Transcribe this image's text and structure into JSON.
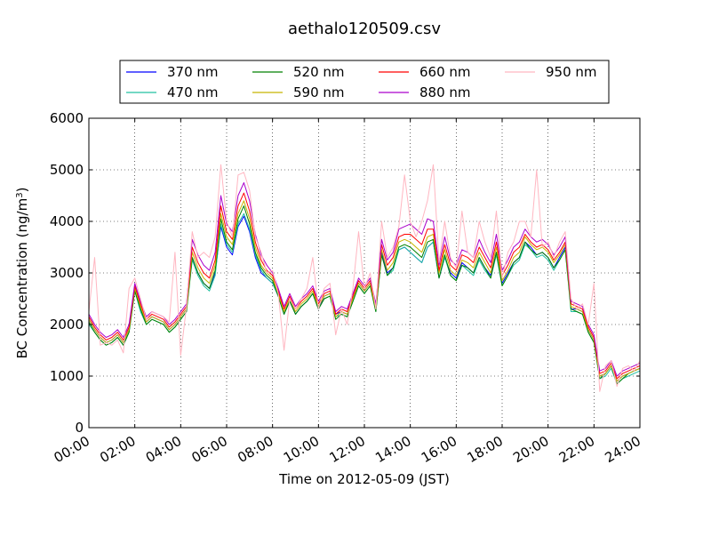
{
  "chart_data": {
    "type": "line",
    "title": "aethalo120509.csv",
    "xlabel": "Time on 2012-05-09 (JST)",
    "ylabel": "BC Concentration (ng/m",
    "ylabel_sup": "3",
    "ylabel_end": ")",
    "x_unit": "hour",
    "xlim": [
      0,
      24
    ],
    "ylim": [
      0,
      6000
    ],
    "grid": true,
    "legend_position": "top-center",
    "x_ticks": [
      0,
      2,
      4,
      6,
      8,
      10,
      12,
      14,
      16,
      18,
      20,
      22,
      24
    ],
    "x_tick_labels": [
      "00:00",
      "02:00",
      "04:00",
      "06:00",
      "08:00",
      "10:00",
      "12:00",
      "14:00",
      "16:00",
      "18:00",
      "20:00",
      "22:00",
      "24:00"
    ],
    "y_ticks": [
      0,
      1000,
      2000,
      3000,
      4000,
      5000,
      6000
    ],
    "y_tick_labels": [
      "0",
      "1000",
      "2000",
      "3000",
      "4000",
      "5000",
      "6000"
    ],
    "x": [
      0.0,
      0.25,
      0.5,
      0.75,
      1.0,
      1.25,
      1.5,
      1.75,
      2.0,
      2.25,
      2.5,
      2.75,
      3.0,
      3.25,
      3.5,
      3.75,
      4.0,
      4.25,
      4.5,
      4.75,
      5.0,
      5.25,
      5.5,
      5.75,
      6.0,
      6.25,
      6.5,
      6.75,
      7.0,
      7.25,
      7.5,
      7.75,
      8.0,
      8.25,
      8.5,
      8.75,
      9.0,
      9.25,
      9.5,
      9.75,
      10.0,
      10.25,
      10.5,
      10.75,
      11.0,
      11.25,
      11.5,
      11.75,
      12.0,
      12.25,
      12.5,
      12.75,
      13.0,
      13.25,
      13.5,
      13.75,
      14.0,
      14.25,
      14.5,
      14.75,
      15.0,
      15.25,
      15.5,
      15.75,
      16.0,
      16.25,
      16.5,
      16.75,
      17.0,
      17.25,
      17.5,
      17.75,
      18.0,
      18.25,
      18.5,
      18.75,
      19.0,
      19.25,
      19.5,
      19.75,
      20.0,
      20.25,
      20.5,
      20.75,
      21.0,
      21.25,
      21.5,
      21.75,
      22.0,
      22.25,
      22.5,
      22.75,
      23.0,
      23.25,
      23.5,
      23.75,
      24.0
    ],
    "series": [
      {
        "name": "370 nm",
        "color": "#0000ff",
        "values": [
          2100,
          1900,
          1750,
          1650,
          1700,
          1800,
          1650,
          1900,
          2700,
          2300,
          2050,
          2150,
          2100,
          2050,
          1900,
          2000,
          2150,
          2300,
          3300,
          3000,
          2800,
          2700,
          3000,
          3900,
          3500,
          3350,
          3900,
          4100,
          3800,
          3300,
          3000,
          2900,
          2800,
          2550,
          2200,
          2500,
          2200,
          2350,
          2450,
          2600,
          2300,
          2550,
          2600,
          2200,
          2250,
          2200,
          2500,
          2800,
          2650,
          2800,
          2300,
          3400,
          3000,
          3100,
          3450,
          3500,
          3400,
          3300,
          3200,
          3500,
          3600,
          2900,
          3300,
          3000,
          2900,
          3200,
          3100,
          3000,
          3300,
          3100,
          2950,
          3400,
          2800,
          3000,
          3200,
          3300,
          3600,
          3500,
          3350,
          3400,
          3300,
          3100,
          3300,
          3500,
          2300,
          2300,
          2250,
          1900,
          1700,
          1000,
          1050,
          1200,
          900,
          1000,
          1050,
          1100,
          1150
        ]
      },
      {
        "name": "470 nm",
        "color": "#20c0a0",
        "values": [
          2000,
          1850,
          1700,
          1600,
          1650,
          1750,
          1600,
          1850,
          2650,
          2250,
          2000,
          2100,
          2050,
          2000,
          1850,
          1950,
          2100,
          2250,
          3250,
          2950,
          2750,
          2650,
          2950,
          3950,
          3550,
          3400,
          3950,
          4150,
          3850,
          3350,
          3050,
          2900,
          2800,
          2550,
          2200,
          2450,
          2200,
          2350,
          2450,
          2600,
          2300,
          2500,
          2550,
          2150,
          2200,
          2150,
          2450,
          2750,
          2600,
          2750,
          2250,
          3350,
          2950,
          3050,
          3450,
          3500,
          3400,
          3300,
          3200,
          3500,
          3600,
          2900,
          3300,
          2950,
          2850,
          3150,
          3050,
          2950,
          3250,
          3050,
          2900,
          3350,
          2750,
          2950,
          3150,
          3250,
          3550,
          3450,
          3300,
          3350,
          3250,
          3050,
          3250,
          3450,
          2250,
          2250,
          2200,
          1850,
          1650,
          950,
          1000,
          1150,
          850,
          950,
          1000,
          1050,
          1100
        ]
      },
      {
        "name": "520 nm",
        "color": "#008000",
        "values": [
          2050,
          1850,
          1700,
          1600,
          1650,
          1750,
          1600,
          1850,
          2650,
          2300,
          2000,
          2100,
          2050,
          2000,
          1850,
          1950,
          2100,
          2250,
          3300,
          3000,
          2800,
          2700,
          3050,
          4050,
          3600,
          3450,
          4050,
          4300,
          3950,
          3400,
          3100,
          2950,
          2850,
          2550,
          2200,
          2450,
          2200,
          2350,
          2450,
          2600,
          2300,
          2500,
          2550,
          2100,
          2200,
          2150,
          2450,
          2750,
          2600,
          2750,
          2250,
          3350,
          2950,
          3100,
          3500,
          3550,
          3500,
          3400,
          3300,
          3600,
          3650,
          2900,
          3350,
          2950,
          2850,
          3150,
          3100,
          3000,
          3300,
          3100,
          2900,
          3400,
          2750,
          2950,
          3200,
          3300,
          3600,
          3450,
          3350,
          3400,
          3300,
          3100,
          3250,
          3450,
          2300,
          2250,
          2200,
          1850,
          1650,
          950,
          1050,
          1200,
          850,
          950,
          1050,
          1100,
          1150
        ]
      },
      {
        "name": "590 nm",
        "color": "#c8b400",
        "values": [
          2100,
          1900,
          1750,
          1650,
          1700,
          1800,
          1650,
          1900,
          2700,
          2350,
          2050,
          2150,
          2100,
          2050,
          1900,
          2000,
          2150,
          2300,
          3400,
          3100,
          2900,
          2800,
          3150,
          4150,
          3700,
          3550,
          4150,
          4400,
          4050,
          3500,
          3150,
          3000,
          2900,
          2600,
          2250,
          2500,
          2250,
          2400,
          2500,
          2650,
          2350,
          2550,
          2600,
          2150,
          2250,
          2200,
          2500,
          2800,
          2650,
          2800,
          2300,
          3450,
          3050,
          3200,
          3600,
          3650,
          3600,
          3500,
          3400,
          3700,
          3750,
          3000,
          3450,
          3050,
          2950,
          3250,
          3200,
          3100,
          3400,
          3200,
          3000,
          3500,
          2850,
          3050,
          3300,
          3400,
          3700,
          3550,
          3450,
          3500,
          3400,
          3200,
          3350,
          3550,
          2350,
          2300,
          2250,
          1900,
          1700,
          1000,
          1050,
          1200,
          900,
          1000,
          1050,
          1100,
          1150
        ]
      },
      {
        "name": "660 nm",
        "color": "#ff0000",
        "values": [
          2150,
          1950,
          1800,
          1700,
          1750,
          1850,
          1700,
          1950,
          2750,
          2400,
          2100,
          2200,
          2150,
          2100,
          1950,
          2050,
          2200,
          2350,
          3500,
          3200,
          3000,
          2900,
          3250,
          4300,
          3800,
          3650,
          4300,
          4550,
          4200,
          3600,
          3250,
          3050,
          2950,
          2650,
          2300,
          2550,
          2300,
          2450,
          2550,
          2700,
          2400,
          2600,
          2650,
          2200,
          2300,
          2250,
          2550,
          2850,
          2700,
          2850,
          2350,
          3550,
          3150,
          3300,
          3700,
          3750,
          3750,
          3650,
          3550,
          3850,
          3850,
          3050,
          3550,
          3150,
          3050,
          3350,
          3300,
          3200,
          3500,
          3300,
          3100,
          3600,
          2950,
          3150,
          3400,
          3500,
          3750,
          3600,
          3500,
          3550,
          3450,
          3250,
          3400,
          3600,
          2400,
          2350,
          2300,
          1950,
          1750,
          1050,
          1100,
          1250,
          950,
          1050,
          1100,
          1150,
          1200
        ]
      },
      {
        "name": "880 nm",
        "color": "#aa00cc",
        "values": [
          2200,
          2000,
          1850,
          1750,
          1800,
          1900,
          1750,
          2000,
          2800,
          2450,
          2150,
          2250,
          2200,
          2150,
          2000,
          2100,
          2250,
          2400,
          3650,
          3350,
          3150,
          3050,
          3400,
          4500,
          3950,
          3800,
          4500,
          4750,
          4400,
          3750,
          3350,
          3150,
          3000,
          2700,
          2350,
          2600,
          2350,
          2500,
          2600,
          2750,
          2450,
          2650,
          2700,
          2250,
          2350,
          2300,
          2600,
          2900,
          2750,
          2900,
          2400,
          3650,
          3250,
          3400,
          3850,
          3900,
          3950,
          3850,
          3750,
          4050,
          4000,
          3150,
          3700,
          3250,
          3150,
          3450,
          3400,
          3300,
          3650,
          3400,
          3200,
          3750,
          3050,
          3250,
          3500,
          3600,
          3850,
          3700,
          3600,
          3650,
          3550,
          3350,
          3500,
          3700,
          2450,
          2400,
          2350,
          2000,
          1800,
          1100,
          1150,
          1300,
          1000,
          1100,
          1150,
          1200,
          1250
        ]
      },
      {
        "name": "950 nm",
        "color": "#ffb6c1",
        "values": [
          2250,
          3300,
          1600,
          1650,
          1600,
          1700,
          1450,
          2700,
          2900,
          2500,
          2100,
          2250,
          2200,
          2150,
          2050,
          3400,
          1400,
          2350,
          3800,
          3300,
          3400,
          3300,
          3700,
          5100,
          4000,
          3700,
          4900,
          4950,
          4600,
          3700,
          3400,
          3000,
          3050,
          2600,
          1500,
          2500,
          2300,
          2500,
          2700,
          3300,
          2300,
          2700,
          2800,
          1800,
          2300,
          2000,
          2700,
          3800,
          2700,
          3000,
          2300,
          4000,
          3300,
          3500,
          3900,
          4900,
          4000,
          3700,
          4000,
          4400,
          5100,
          3200,
          4000,
          3300,
          3100,
          4200,
          3400,
          3300,
          4000,
          3600,
          3300,
          4200,
          2900,
          3400,
          3600,
          4000,
          4000,
          3700,
          5000,
          3500,
          3600,
          3300,
          3600,
          3800,
          2500,
          2300,
          2400,
          2000,
          2800,
          700,
          1200,
          1300,
          800,
          1150,
          1200,
          1100,
          1300
        ]
      }
    ]
  }
}
